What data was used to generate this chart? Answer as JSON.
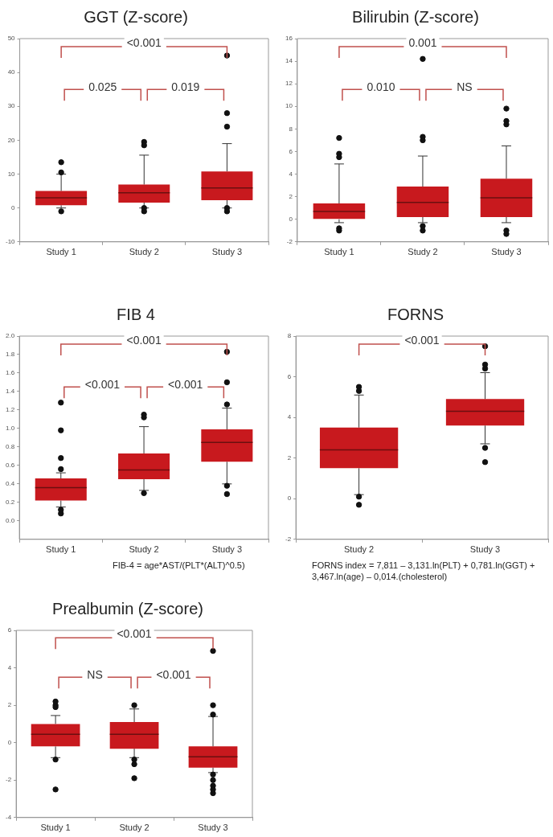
{
  "chart_data": [
    {
      "type": "box",
      "title": "GGT (Z-score)",
      "categories": [
        "Study 1",
        "Study 2",
        "Study 3"
      ],
      "ylim": [
        -10,
        50
      ],
      "yticks": [
        -10,
        0,
        10,
        20,
        30,
        40,
        50
      ],
      "grid": false,
      "legend": false,
      "series": [
        {
          "color": "#c8191e",
          "boxes": [
            {
              "low": 0,
              "q1": 0.8,
              "median": 3,
              "q3": 5,
              "high": 10,
              "outliers": [
                13.5,
                10.5,
                -1
              ]
            },
            {
              "low": 0,
              "q1": 1.6,
              "median": 4.5,
              "q3": 6.9,
              "high": 15.6,
              "outliers": [
                19.5,
                18.5,
                0,
                -1
              ]
            },
            {
              "low": 0,
              "q1": 2.3,
              "median": 5.9,
              "q3": 10.8,
              "high": 19,
              "outliers": [
                45,
                28,
                24,
                0,
                -1
              ]
            }
          ]
        }
      ],
      "annotations": [
        "<0.001",
        "0.025",
        "0.019"
      ]
    },
    {
      "type": "box",
      "title": "Bilirubin (Z-score)",
      "categories": [
        "Study 1",
        "Study 2",
        "Study 3"
      ],
      "ylim": [
        -2,
        16
      ],
      "yticks": [
        -2,
        0,
        2,
        4,
        6,
        8,
        10,
        12,
        14,
        16
      ],
      "grid": false,
      "legend": false,
      "series": [
        {
          "color": "#c8191e",
          "boxes": [
            {
              "low": -0.3,
              "q1": 0,
              "median": 0.7,
              "q3": 1.4,
              "high": 4.9,
              "outliers": [
                7.2,
                5.8,
                5.5,
                -0.8,
                -1
              ]
            },
            {
              "low": -0.3,
              "q1": 0.2,
              "median": 1.5,
              "q3": 2.9,
              "high": 5.6,
              "outliers": [
                14.2,
                7.3,
                7,
                -0.6,
                -1
              ]
            },
            {
              "low": -0.3,
              "q1": 0.2,
              "median": 1.9,
              "q3": 3.6,
              "high": 6.5,
              "outliers": [
                9.8,
                8.7,
                8.4,
                -1,
                -1.3
              ]
            }
          ]
        }
      ],
      "annotations": [
        "0.001",
        "0.010",
        "NS"
      ]
    },
    {
      "type": "box",
      "title": "FIB 4",
      "categories": [
        "Study 1",
        "Study 2",
        "Study 3"
      ],
      "ylim": [
        -0.2,
        2
      ],
      "yticks": [
        {
          "value": 0,
          "label": "0.0"
        },
        0.2,
        0.4,
        0.6,
        0.8,
        {
          "value": 1,
          "label": "1.0"
        },
        1.2,
        1.4,
        1.6,
        1.8,
        {
          "value": 2,
          "label": "2.0"
        }
      ],
      "grid": false,
      "legend": false,
      "series": [
        {
          "color": "#c8191e",
          "boxes": [
            {
              "low": 0.15,
              "q1": 0.22,
              "median": 0.36,
              "q3": 0.46,
              "high": 0.52,
              "outliers": [
                1.28,
                0.98,
                0.68,
                0.56,
                0.12,
                0.08
              ]
            },
            {
              "low": 0.33,
              "q1": 0.45,
              "median": 0.55,
              "q3": 0.73,
              "high": 1.02,
              "outliers": [
                1.15,
                1.12,
                0.3
              ]
            },
            {
              "low": 0.4,
              "q1": 0.64,
              "median": 0.85,
              "q3": 0.99,
              "high": 1.22,
              "outliers": [
                1.83,
                1.5,
                1.26,
                0.38,
                0.29
              ]
            }
          ]
        }
      ],
      "annotations": [
        "<0.001",
        "<0.001",
        "<0.001",
        "FIB-4 = age*AST/(PLT*(ALT)^0.5)"
      ]
    },
    {
      "type": "box",
      "title": "FORNS",
      "categories": [
        "Study 2",
        "Study 3"
      ],
      "ylim": [
        -2,
        8
      ],
      "yticks": [
        -2,
        0,
        2,
        4,
        6,
        8
      ],
      "grid": false,
      "legend": false,
      "series": [
        {
          "color": "#c8191e",
          "boxes": [
            {
              "low": 0.2,
              "q1": 1.5,
              "median": 2.4,
              "q3": 3.5,
              "high": 5.1,
              "outliers": [
                5.5,
                5.3,
                0.1,
                -0.3
              ]
            },
            {
              "low": 2.7,
              "q1": 3.6,
              "median": 4.3,
              "q3": 4.9,
              "high": 6.2,
              "outliers": [
                7.5,
                6.6,
                6.4,
                2.5,
                1.8
              ]
            }
          ]
        }
      ],
      "annotations": [
        "<0.001",
        "FORNS index = 7,811 – 3,131.ln(PLT) + 0,781.ln(GGT) + 3,467.ln(age) – 0,014.(cholesterol)"
      ]
    },
    {
      "type": "box",
      "title": "Prealbumin (Z-score)",
      "categories": [
        "Study 1",
        "Study 2",
        "Study 3"
      ],
      "ylim": [
        -4,
        6
      ],
      "yticks": [
        -4,
        -2,
        0,
        2,
        4,
        6
      ],
      "grid": false,
      "legend": false,
      "series": [
        {
          "color": "#c8191e",
          "boxes": [
            {
              "low": -0.8,
              "q1": -0.2,
              "median": 0.45,
              "q3": 1,
              "high": 1.45,
              "outliers": [
                2.2,
                2,
                1.9,
                -0.9,
                -2.5
              ]
            },
            {
              "low": -0.8,
              "q1": -0.32,
              "median": 0.45,
              "q3": 1.1,
              "high": 1.8,
              "outliers": [
                2,
                -0.9,
                -1.15,
                -1.9
              ]
            },
            {
              "low": -1.6,
              "q1": -1.33,
              "median": -0.75,
              "q3": -0.2,
              "high": 1.4,
              "outliers": [
                4.9,
                2,
                1.5,
                -1.7,
                -2,
                -2.3,
                -2.5,
                -2.7
              ]
            }
          ]
        }
      ],
      "annotations": [
        "<0.001",
        "NS",
        "<0.001"
      ]
    }
  ]
}
